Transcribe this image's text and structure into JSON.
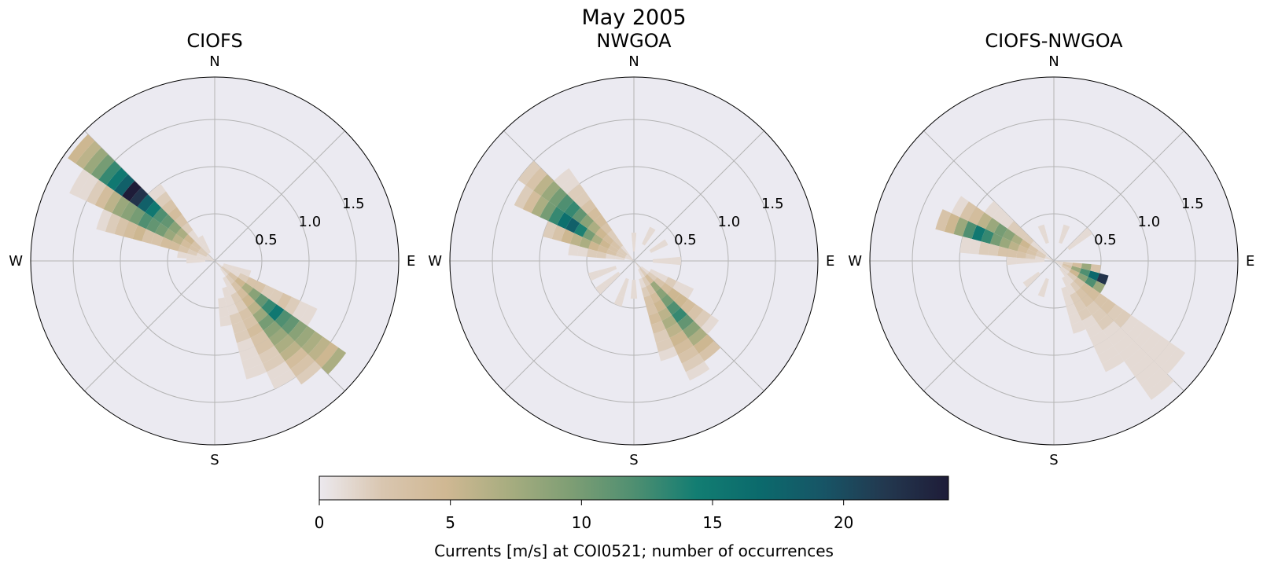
{
  "figure": {
    "title": "May 2005"
  },
  "compass": {
    "n": "N",
    "e": "E",
    "s": "S",
    "w": "W"
  },
  "colorbar": {
    "label": "Currents [m/s] at COI0521; number of occurrences",
    "ticks": [
      "0",
      "5",
      "10",
      "15",
      "20"
    ],
    "range": [
      0,
      24
    ],
    "colors": [
      "#ece9ee",
      "#d9c6b0",
      "#d0b893",
      "#a8ad80",
      "#7e9e74",
      "#4f8f71",
      "#127d72",
      "#0b6a6c",
      "#175566",
      "#23384f",
      "#1e1c38"
    ]
  },
  "chart_data": [
    {
      "type": "polar-histogram",
      "title": "CIOFS",
      "r_ticks": [
        "0.5",
        "1.0",
        "1.5"
      ],
      "r_values": [
        0.5,
        1.0,
        1.5
      ],
      "rmax": 1.95,
      "rbin_width": 0.1,
      "dir_bin_width_deg": 10,
      "bins": [
        {
          "dir": 300,
          "r": [
            0.05,
            0.15,
            0.25,
            0.35,
            0.45,
            0.55,
            0.65,
            0.75,
            0.85,
            0.95,
            1.05,
            1.15,
            1.25,
            1.35,
            1.45,
            1.55,
            1.65,
            1.75,
            1.85
          ],
          "c": [
            1,
            2,
            3,
            4,
            6,
            8,
            10,
            11,
            12,
            10,
            9,
            8,
            6,
            4,
            2,
            1,
            1,
            0,
            0
          ]
        },
        {
          "dir": 310,
          "r": [
            0.05,
            0.15,
            0.25,
            0.35,
            0.45,
            0.55,
            0.65,
            0.75,
            0.85,
            0.95,
            1.05,
            1.15,
            1.25,
            1.35,
            1.45,
            1.55,
            1.65,
            1.75,
            1.85
          ],
          "c": [
            1,
            2,
            3,
            5,
            7,
            9,
            11,
            12,
            15,
            18,
            22,
            24,
            18,
            15,
            13,
            10,
            8,
            6,
            5
          ]
        },
        {
          "dir": 290,
          "r": [
            0.05,
            0.15,
            0.25,
            0.35,
            0.45,
            0.55,
            0.65,
            0.75,
            0.85,
            0.95,
            1.05,
            1.15,
            1.25
          ],
          "c": [
            1,
            1,
            2,
            3,
            4,
            4,
            3,
            3,
            5,
            4,
            3,
            2,
            1
          ]
        },
        {
          "dir": 320,
          "r": [
            0.05,
            0.15,
            0.25,
            0.35,
            0.45,
            0.55,
            0.65,
            0.75,
            0.85,
            0.95
          ],
          "c": [
            0,
            1,
            1,
            1,
            2,
            3,
            4,
            3,
            2,
            1
          ]
        },
        {
          "dir": 280,
          "r": [
            0.05,
            0.15,
            0.25,
            0.35
          ],
          "c": [
            1,
            1,
            1,
            1
          ]
        },
        {
          "dir": 270,
          "r": [
            0.15,
            0.25
          ],
          "c": [
            1,
            1
          ]
        },
        {
          "dir": 330,
          "r": [
            0.15,
            0.25
          ],
          "c": [
            1,
            1
          ]
        },
        {
          "dir": 130,
          "r": [
            0.05,
            0.15,
            0.25,
            0.35,
            0.45,
            0.55,
            0.65,
            0.75,
            0.85,
            0.95,
            1.05,
            1.15,
            1.25,
            1.35,
            1.45,
            1.55,
            1.65
          ],
          "c": [
            1,
            2,
            3,
            5,
            7,
            9,
            11,
            13,
            15,
            12,
            11,
            9,
            8,
            7,
            6,
            5,
            7
          ]
        },
        {
          "dir": 140,
          "r": [
            0.15,
            0.25,
            0.35,
            0.45,
            0.55,
            0.65,
            0.75,
            0.85,
            0.95,
            1.05,
            1.15,
            1.25,
            1.35,
            1.45,
            1.55
          ],
          "c": [
            1,
            2,
            3,
            4,
            5,
            6,
            8,
            10,
            9,
            8,
            7,
            6,
            4,
            3,
            2
          ]
        },
        {
          "dir": 120,
          "r": [
            0.15,
            0.25,
            0.35,
            0.45,
            0.55,
            0.65,
            0.75,
            0.85,
            0.95,
            1.05,
            1.15
          ],
          "c": [
            1,
            1,
            2,
            3,
            3,
            2,
            2,
            3,
            2,
            1,
            1
          ]
        },
        {
          "dir": 150,
          "r": [
            0.25,
            0.35,
            0.45,
            0.55,
            0.65,
            0.75,
            0.85,
            0.95,
            1.05,
            1.15,
            1.25,
            1.35,
            1.45
          ],
          "c": [
            1,
            1,
            2,
            2,
            3,
            3,
            4,
            3,
            3,
            2,
            2,
            1,
            1
          ]
        },
        {
          "dir": 160,
          "r": [
            0.35,
            0.45,
            0.55,
            0.65,
            0.75,
            0.85,
            0.95,
            1.05,
            1.15,
            1.25
          ],
          "c": [
            1,
            1,
            1,
            2,
            2,
            2,
            1,
            1,
            1,
            1
          ]
        },
        {
          "dir": 110,
          "r": [
            0.15,
            0.25,
            0.35
          ],
          "c": [
            1,
            1,
            1
          ]
        },
        {
          "dir": 170,
          "r": [
            0.45,
            0.55,
            0.65
          ],
          "c": [
            1,
            1,
            1
          ]
        }
      ]
    },
    {
      "type": "polar-histogram",
      "title": "NWGOA",
      "r_ticks": [
        "0.5",
        "1.0",
        "1.5"
      ],
      "r_values": [
        0.5,
        1.0,
        1.5
      ],
      "rmax": 1.95,
      "rbin_width": 0.1,
      "dir_bin_width_deg": 10,
      "bins": [
        {
          "dir": 300,
          "r": [
            0.05,
            0.15,
            0.25,
            0.35,
            0.45,
            0.55,
            0.65,
            0.75,
            0.85,
            0.95,
            1.05,
            1.15,
            1.25,
            1.35
          ],
          "c": [
            1,
            2,
            3,
            5,
            7,
            10,
            14,
            18,
            16,
            13,
            10,
            7,
            4,
            2
          ]
        },
        {
          "dir": 310,
          "r": [
            0.05,
            0.15,
            0.25,
            0.35,
            0.45,
            0.55,
            0.65,
            0.75,
            0.85,
            0.95,
            1.05,
            1.15,
            1.25,
            1.35,
            1.45
          ],
          "c": [
            1,
            2,
            3,
            4,
            5,
            7,
            9,
            11,
            13,
            12,
            10,
            8,
            6,
            3,
            2
          ]
        },
        {
          "dir": 290,
          "r": [
            0.05,
            0.15,
            0.25,
            0.35,
            0.45,
            0.55,
            0.65,
            0.75,
            0.85,
            0.95
          ],
          "c": [
            1,
            2,
            3,
            4,
            5,
            7,
            6,
            5,
            3,
            2
          ]
        },
        {
          "dir": 320,
          "r": [
            0.05,
            0.15,
            0.25,
            0.35,
            0.45,
            0.55,
            0.65,
            0.75,
            0.85,
            0.95,
            1.05,
            1.15
          ],
          "c": [
            1,
            1,
            2,
            2,
            3,
            4,
            4,
            3,
            2,
            2,
            1,
            1
          ]
        },
        {
          "dir": 280,
          "r": [
            0.15,
            0.25,
            0.35,
            0.45,
            0.55,
            0.65
          ],
          "c": [
            1,
            1,
            2,
            2,
            1,
            1
          ]
        },
        {
          "dir": 140,
          "r": [
            0.05,
            0.15,
            0.25,
            0.35,
            0.45,
            0.55,
            0.65,
            0.75,
            0.85,
            0.95,
            1.05,
            1.15,
            1.25
          ],
          "c": [
            1,
            2,
            4,
            8,
            9,
            10,
            12,
            13,
            11,
            9,
            7,
            5,
            3
          ]
        },
        {
          "dir": 150,
          "r": [
            0.15,
            0.25,
            0.35,
            0.45,
            0.55,
            0.65,
            0.75,
            0.85,
            0.95,
            1.05,
            1.15,
            1.25,
            1.35
          ],
          "c": [
            1,
            2,
            3,
            4,
            5,
            6,
            7,
            6,
            5,
            4,
            3,
            2,
            1
          ]
        },
        {
          "dir": 130,
          "r": [
            0.15,
            0.25,
            0.35,
            0.45,
            0.55,
            0.65,
            0.75,
            0.85,
            0.95,
            1.05
          ],
          "c": [
            1,
            2,
            3,
            4,
            5,
            5,
            4,
            3,
            2,
            1
          ]
        },
        {
          "dir": 160,
          "r": [
            0.25,
            0.35,
            0.45,
            0.55,
            0.65,
            0.75,
            0.85,
            0.95,
            1.05
          ],
          "c": [
            1,
            2,
            3,
            3,
            4,
            3,
            2,
            2,
            1
          ]
        },
        {
          "dir": 120,
          "r": [
            0.25,
            0.35,
            0.45,
            0.55,
            0.65
          ],
          "c": [
            1,
            1,
            2,
            1,
            1
          ]
        },
        {
          "dir": 90,
          "r": [
            0.25,
            0.35,
            0.45
          ],
          "c": [
            1,
            1,
            1
          ]
        },
        {
          "dir": 60,
          "r": [
            0.25,
            0.35
          ],
          "c": [
            1,
            1
          ]
        },
        {
          "dir": 30,
          "r": [
            0.25,
            0.35
          ],
          "c": [
            1,
            1
          ]
        },
        {
          "dir": 0,
          "r": [
            0.15,
            0.25
          ],
          "c": [
            1,
            1
          ]
        },
        {
          "dir": 200,
          "r": [
            0.25,
            0.35,
            0.45
          ],
          "c": [
            1,
            1,
            1
          ]
        },
        {
          "dir": 230,
          "r": [
            0.25,
            0.35,
            0.45
          ],
          "c": [
            1,
            1,
            1
          ]
        },
        {
          "dir": 250,
          "r": [
            0.25,
            0.35,
            0.45
          ],
          "c": [
            1,
            1,
            1
          ]
        },
        {
          "dir": 180,
          "r": [
            0.25,
            0.35
          ],
          "c": [
            1,
            1
          ]
        }
      ]
    },
    {
      "type": "polar-histogram",
      "title": "CIOFS-NWGOA",
      "r_ticks": [
        "0.5",
        "1.0",
        "1.5"
      ],
      "r_values": [
        0.5,
        1.0,
        1.5
      ],
      "rmax": 1.95,
      "rbin_width": 0.1,
      "dir_bin_width_deg": 10,
      "bins": [
        {
          "dir": 290,
          "r": [
            0.05,
            0.15,
            0.25,
            0.35,
            0.45,
            0.55,
            0.65,
            0.75,
            0.85,
            0.95,
            1.05,
            1.15,
            1.25
          ],
          "c": [
            1,
            2,
            3,
            4,
            6,
            8,
            10,
            13,
            15,
            12,
            8,
            5,
            3
          ]
        },
        {
          "dir": 300,
          "r": [
            0.05,
            0.15,
            0.25,
            0.35,
            0.45,
            0.55,
            0.65,
            0.75,
            0.85,
            0.95,
            1.05,
            1.15
          ],
          "c": [
            1,
            2,
            3,
            5,
            7,
            9,
            10,
            8,
            6,
            4,
            3,
            1
          ]
        },
        {
          "dir": 280,
          "r": [
            0.15,
            0.25,
            0.35,
            0.45,
            0.55,
            0.65,
            0.75,
            0.85,
            0.95
          ],
          "c": [
            1,
            2,
            3,
            3,
            3,
            2,
            2,
            1,
            1
          ]
        },
        {
          "dir": 310,
          "r": [
            0.15,
            0.25,
            0.35,
            0.45,
            0.55,
            0.65,
            0.75,
            0.85
          ],
          "c": [
            1,
            1,
            2,
            2,
            2,
            1,
            1,
            1
          ]
        },
        {
          "dir": 270,
          "r": [
            0.15,
            0.25,
            0.35,
            0.45
          ],
          "c": [
            1,
            1,
            1,
            1
          ]
        },
        {
          "dir": 110,
          "r": [
            0.05,
            0.15,
            0.25,
            0.35,
            0.45,
            0.55
          ],
          "c": [
            1,
            3,
            8,
            12,
            17,
            22
          ]
        },
        {
          "dir": 120,
          "r": [
            0.05,
            0.15,
            0.25,
            0.35,
            0.45,
            0.55
          ],
          "c": [
            1,
            2,
            5,
            9,
            12,
            8
          ]
        },
        {
          "dir": 100,
          "r": [
            0.05,
            0.15,
            0.25,
            0.35,
            0.45
          ],
          "c": [
            1,
            2,
            4,
            8,
            3
          ]
        },
        {
          "dir": 130,
          "r": [
            0.15,
            0.25,
            0.35,
            0.45,
            0.55,
            0.65,
            0.75,
            0.85,
            0.95,
            1.05,
            1.15,
            1.25,
            1.35,
            1.45,
            1.55,
            1.65
          ],
          "c": [
            1,
            2,
            3,
            4,
            4,
            3,
            3,
            2,
            2,
            1,
            1,
            1,
            1,
            1,
            1,
            1
          ]
        },
        {
          "dir": 140,
          "r": [
            0.15,
            0.25,
            0.35,
            0.45,
            0.55,
            0.65,
            0.75,
            0.85,
            0.95,
            1.05,
            1.15,
            1.25,
            1.35,
            1.45,
            1.55,
            1.65,
            1.75
          ],
          "c": [
            1,
            1,
            2,
            3,
            3,
            2,
            2,
            2,
            1,
            1,
            1,
            1,
            1,
            1,
            1,
            1,
            1
          ]
        },
        {
          "dir": 150,
          "r": [
            0.25,
            0.35,
            0.45,
            0.55,
            0.65,
            0.75,
            0.85,
            0.95,
            1.05,
            1.15,
            1.25
          ],
          "c": [
            1,
            1,
            2,
            2,
            2,
            1,
            1,
            1,
            1,
            1,
            1
          ]
        },
        {
          "dir": 160,
          "r": [
            0.35,
            0.45,
            0.55,
            0.65,
            0.75
          ],
          "c": [
            1,
            1,
            1,
            1,
            1
          ]
        },
        {
          "dir": 50,
          "r": [
            0.25,
            0.35,
            0.45
          ],
          "c": [
            1,
            1,
            1
          ]
        },
        {
          "dir": 20,
          "r": [
            0.25,
            0.35
          ],
          "c": [
            1,
            1
          ]
        },
        {
          "dir": 340,
          "r": [
            0.25,
            0.35
          ],
          "c": [
            1,
            1
          ]
        },
        {
          "dir": 200,
          "r": [
            0.25,
            0.35
          ],
          "c": [
            1,
            1
          ]
        },
        {
          "dir": 230,
          "r": [
            0.25,
            0.35
          ],
          "c": [
            1,
            1
          ]
        }
      ]
    }
  ]
}
